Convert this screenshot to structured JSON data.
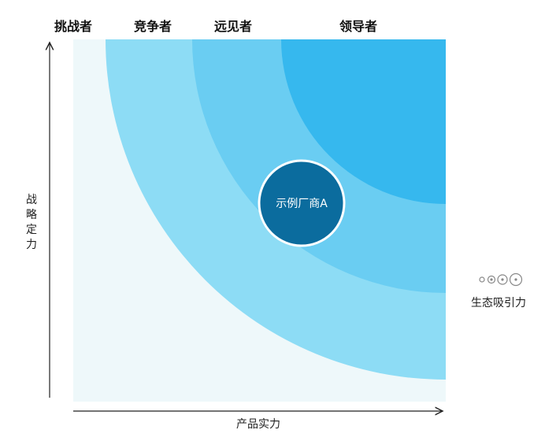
{
  "chart_data": {
    "type": "scatter",
    "xlabel": "产品实力",
    "ylabel": "战略定力",
    "segments": [
      "挑战者",
      "竞争者",
      "远见者",
      "领导者"
    ],
    "segment_colors": [
      "#eef8fa",
      "#8ddcf5",
      "#6acdf2",
      "#36b8ee"
    ],
    "points": [
      {
        "label": "示例厂商A",
        "color": "#0b6c9e"
      }
    ],
    "size_legend": {
      "label": "生态吸引力",
      "icon": "concentric-circles-icon"
    }
  }
}
